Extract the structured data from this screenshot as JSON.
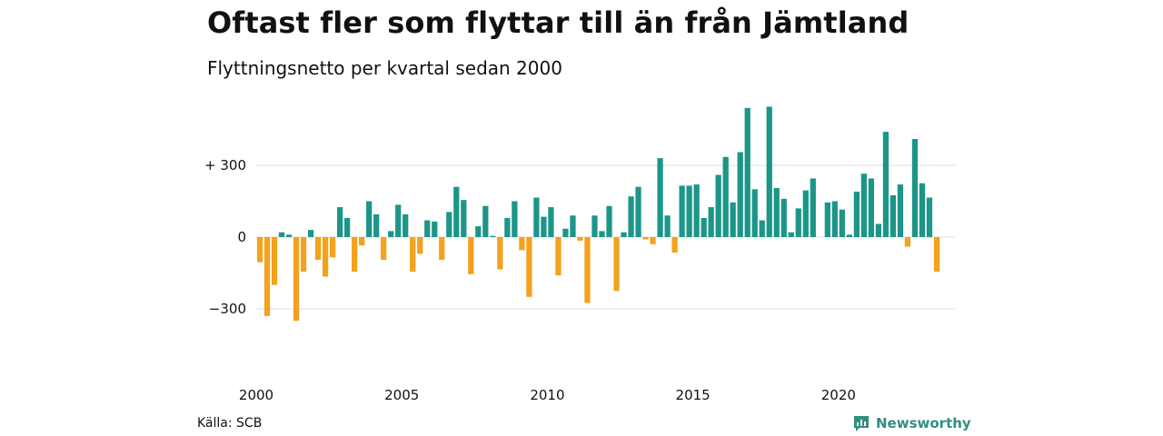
{
  "header": {
    "title": "Oftast fler som flyttar till än från Jämtland",
    "subtitle": "Flyttningsnetto per kvartal sedan 2000"
  },
  "footer": {
    "source": "Källa: SCB",
    "brand": "Newsworthy",
    "brand_icon": "bar-chart-speech-bubble-icon"
  },
  "colors": {
    "positive": "#1b9688",
    "negative": "#f4a11c",
    "grid": "#dddddd",
    "brand": "#2f8f80"
  },
  "chart_data": {
    "type": "bar",
    "title": "Oftast fler som flyttar till än från Jämtland",
    "subtitle": "Flyttningsnetto per kvartal sedan 2000",
    "xlabel": "",
    "ylabel": "",
    "ylim": [
      -460,
      560
    ],
    "yticks": [
      {
        "value": 300,
        "label": "+ 300"
      },
      {
        "value": 0,
        "label": "0"
      },
      {
        "value": -300,
        "label": "−300"
      }
    ],
    "xticks": [
      "2000",
      "2005",
      "2010",
      "2015",
      "2020"
    ],
    "grid": true,
    "legend": "none",
    "categories": [
      "2000K1",
      "2000K2",
      "2000K3",
      "2000K4",
      "2001K1",
      "2001K2",
      "2001K3",
      "2001K4",
      "2002K1",
      "2002K2",
      "2002K3",
      "2002K4",
      "2003K1",
      "2003K2",
      "2003K3",
      "2003K4",
      "2004K1",
      "2004K2",
      "2004K3",
      "2004K4",
      "2005K1",
      "2005K2",
      "2005K3",
      "2005K4",
      "2006K1",
      "2006K2",
      "2006K3",
      "2006K4",
      "2007K1",
      "2007K2",
      "2007K3",
      "2007K4",
      "2008K1",
      "2008K2",
      "2008K3",
      "2008K4",
      "2009K1",
      "2009K2",
      "2009K3",
      "2009K4",
      "2010K1",
      "2010K2",
      "2010K3",
      "2010K4",
      "2011K1",
      "2011K2",
      "2011K3",
      "2011K4",
      "2012K1",
      "2012K2",
      "2012K3",
      "2012K4",
      "2013K1",
      "2013K2",
      "2013K3",
      "2013K4",
      "2014K1",
      "2014K2",
      "2014K3",
      "2014K4",
      "2015K1",
      "2015K2",
      "2015K3",
      "2015K4",
      "2016K1",
      "2016K2",
      "2016K3",
      "2016K4",
      "2017K1",
      "2017K2",
      "2017K3",
      "2017K4",
      "2018K1",
      "2018K2",
      "2018K3",
      "2018K4",
      "2019K1",
      "2019K2",
      "2019K3",
      "2019K4",
      "2020K1",
      "2020K2",
      "2020K3",
      "2020K4",
      "2021K1",
      "2021K2",
      "2021K3",
      "2021K4",
      "2022K1",
      "2022K2",
      "2022K3",
      "2022K4",
      "2023K1",
      "2023K2",
      "2023K3",
      "2023K4"
    ],
    "values": [
      -105,
      -330,
      -200,
      20,
      10,
      -350,
      -145,
      30,
      -95,
      -165,
      -85,
      125,
      80,
      -145,
      -35,
      150,
      95,
      -95,
      25,
      135,
      95,
      -145,
      -70,
      70,
      65,
      -95,
      105,
      210,
      155,
      -155,
      45,
      130,
      5,
      -135,
      80,
      150,
      -55,
      -250,
      165,
      85,
      125,
      -160,
      35,
      90,
      -15,
      -275,
      90,
      25,
      130,
      -225,
      20,
      170,
      210,
      -10,
      -30,
      330,
      90,
      -65,
      215,
      215,
      220,
      80,
      125,
      260,
      335,
      145,
      355,
      540,
      200,
      70,
      545,
      205,
      160,
      20,
      120,
      195,
      245,
      0,
      145,
      150,
      115,
      10,
      190,
      265,
      245,
      55,
      440,
      175,
      220,
      -40,
      410,
      225,
      165,
      -145,
      0,
      0
    ]
  }
}
